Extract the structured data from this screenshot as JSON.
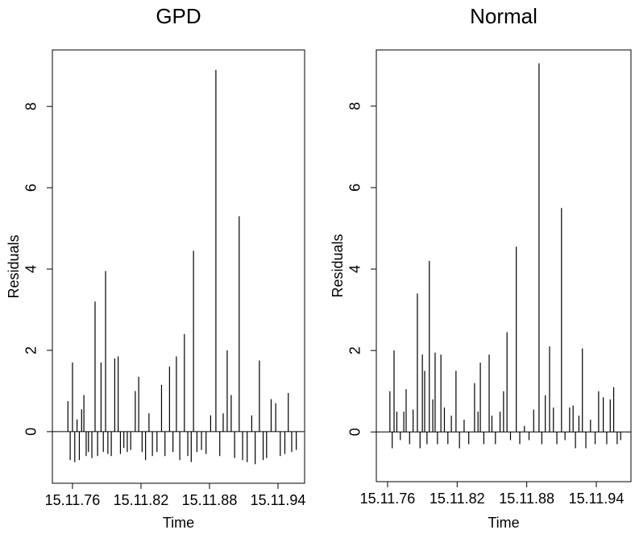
{
  "chart_data": [
    {
      "type": "spike",
      "title": "GPD",
      "xlabel": "Time",
      "ylabel": "Residuals",
      "x": [
        1975.6,
        1975.8,
        1976.0,
        1976.2,
        1976.4,
        1976.6,
        1976.8,
        1977.0,
        1977.2,
        1977.4,
        1977.7,
        1977.98,
        1978.2,
        1978.5,
        1978.7,
        1978.9,
        1979.1,
        1979.4,
        1979.7,
        1980.0,
        1980.2,
        1980.5,
        1980.8,
        1981.1,
        1981.5,
        1981.8,
        1982.1,
        1982.4,
        1982.7,
        1983.0,
        1983.4,
        1983.8,
        1984.1,
        1984.5,
        1984.8,
        1985.1,
        1985.4,
        1985.8,
        1986.1,
        1986.4,
        1986.6,
        1986.9,
        1987.3,
        1987.7,
        1988.1,
        1988.56,
        1988.9,
        1989.2,
        1989.55,
        1989.9,
        1990.2,
        1990.6,
        1990.9,
        1991.3,
        1991.7,
        1992.0,
        1992.37,
        1992.7,
        1993.0,
        1993.4,
        1993.8,
        1994.2,
        1994.6,
        1994.9,
        1995.2,
        1995.6
      ],
      "values": [
        0.75,
        -0.7,
        1.7,
        -0.75,
        0.3,
        -0.7,
        0.55,
        0.9,
        -0.6,
        -0.5,
        -0.65,
        3.2,
        -0.6,
        1.7,
        -0.5,
        3.95,
        -0.55,
        -0.6,
        1.8,
        1.85,
        -0.55,
        -0.4,
        -0.5,
        -0.45,
        1.0,
        1.35,
        -0.5,
        -0.7,
        0.45,
        -0.6,
        -0.5,
        1.15,
        -0.6,
        1.6,
        -0.5,
        1.85,
        -0.7,
        2.4,
        -0.6,
        -0.75,
        4.45,
        -0.5,
        -0.45,
        -0.55,
        0.4,
        8.9,
        -0.6,
        0.45,
        2.0,
        0.9,
        -0.65,
        5.3,
        -0.7,
        -0.75,
        0.4,
        -0.8,
        1.75,
        -0.7,
        -0.65,
        0.8,
        0.7,
        -0.6,
        -0.55,
        0.95,
        -0.5,
        -0.45
      ],
      "xlim": [
        1974.24,
        1996.33
      ],
      "ylim": [
        -1.27,
        9.39
      ],
      "xticks": [
        {
          "value": 1976,
          "label": "15.11.76"
        },
        {
          "value": 1982,
          "label": "15.11.82"
        },
        {
          "value": 1988,
          "label": "15.11.88"
        },
        {
          "value": 1994,
          "label": "15.11.94"
        }
      ],
      "yticks": [
        0,
        2,
        4,
        6,
        8
      ],
      "color": "#000000"
    },
    {
      "type": "spike",
      "title": "Normal",
      "xlabel": "Time",
      "ylabel": "Residuals",
      "x": [
        1976.2,
        1976.4,
        1976.56,
        1976.8,
        1977.1,
        1977.4,
        1977.6,
        1977.9,
        1978.2,
        1978.57,
        1978.8,
        1979.0,
        1979.2,
        1979.4,
        1979.6,
        1979.9,
        1980.1,
        1980.3,
        1980.6,
        1980.9,
        1981.2,
        1981.5,
        1981.9,
        1982.2,
        1982.6,
        1983.0,
        1983.5,
        1983.8,
        1984.0,
        1984.3,
        1984.76,
        1985.0,
        1985.3,
        1985.7,
        1986.0,
        1986.3,
        1986.6,
        1987.1,
        1987.4,
        1987.8,
        1988.2,
        1988.6,
        1989.06,
        1989.3,
        1989.6,
        1989.97,
        1990.3,
        1990.6,
        1991.0,
        1991.3,
        1991.7,
        1992.0,
        1992.2,
        1992.5,
        1992.8,
        1993.1,
        1993.5,
        1993.9,
        1994.2,
        1994.6,
        1994.9,
        1995.2,
        1995.5,
        1995.8,
        1996.1
      ],
      "values": [
        1.0,
        -0.4,
        2.0,
        0.5,
        -0.2,
        0.5,
        1.05,
        -0.3,
        0.55,
        3.4,
        -0.4,
        1.9,
        1.5,
        -0.3,
        4.2,
        0.8,
        1.95,
        -0.3,
        1.9,
        0.6,
        -0.3,
        0.4,
        1.5,
        -0.4,
        0.3,
        -0.3,
        1.2,
        0.5,
        1.7,
        -0.3,
        1.9,
        0.4,
        -0.3,
        0.5,
        1.0,
        2.45,
        -0.2,
        4.55,
        -0.3,
        0.15,
        -0.2,
        0.55,
        9.05,
        -0.3,
        0.9,
        2.1,
        0.6,
        -0.3,
        5.5,
        -0.2,
        0.6,
        0.65,
        -0.4,
        0.4,
        2.05,
        -0.4,
        0.3,
        -0.3,
        1.0,
        0.85,
        -0.3,
        0.8,
        1.1,
        -0.3,
        -0.2
      ],
      "xlim": [
        1975.03,
        1996.99
      ],
      "ylim": [
        -1.22,
        9.38
      ],
      "xticks": [
        {
          "value": 1976,
          "label": "15.11.76"
        },
        {
          "value": 1982,
          "label": "15.11.82"
        },
        {
          "value": 1988,
          "label": "15.11.88"
        },
        {
          "value": 1994,
          "label": "15.11.94"
        }
      ],
      "yticks": [
        0,
        2,
        4,
        6,
        8
      ],
      "color": "#000000"
    }
  ]
}
